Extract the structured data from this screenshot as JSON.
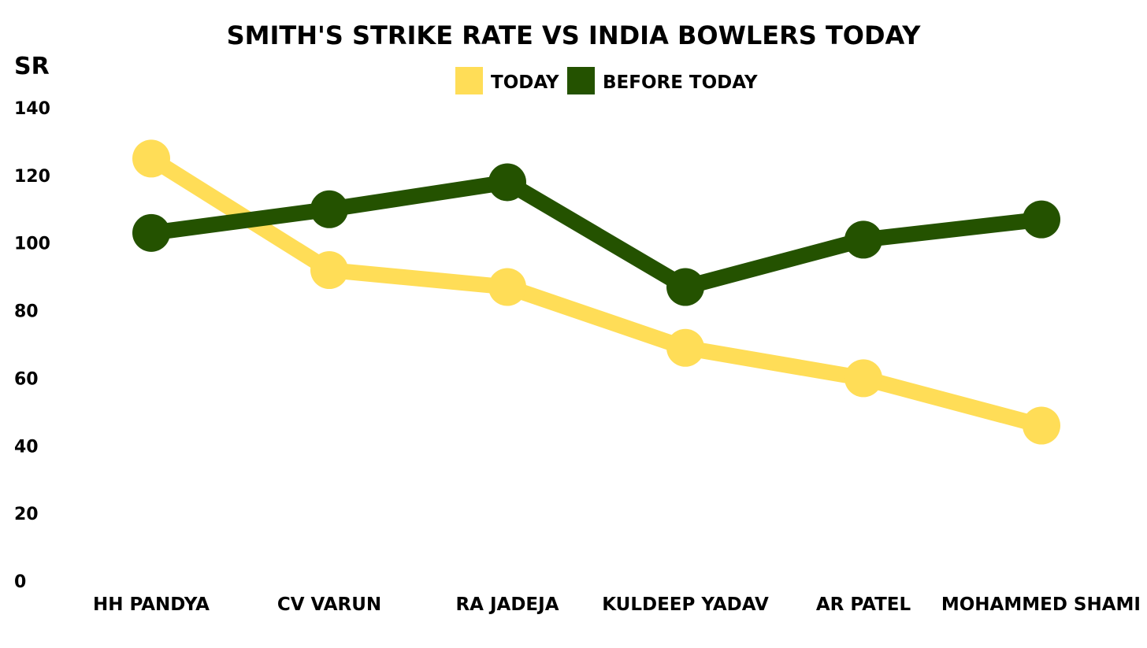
{
  "chart_data": {
    "type": "line",
    "title": "SMITH'S STRIKE RATE VS INDIA BOWLERS TODAY",
    "ylabel": "SR",
    "xlabel": "",
    "ylim": [
      0,
      140
    ],
    "yticks": [
      0,
      20,
      40,
      60,
      80,
      100,
      120,
      140
    ],
    "ytick_labels": [
      "0",
      "20",
      "40",
      "60",
      "80",
      "100",
      "120",
      "140"
    ],
    "grid": false,
    "legend_position": "top-center",
    "categories": [
      "HH PANDYA",
      "CV VARUN",
      "RA JADEJA",
      "KULDEEP YADAV",
      "AR PATEL",
      "MOHAMMED SHAMI"
    ],
    "series": [
      {
        "name": "TODAY",
        "color": "#FFDD57",
        "values": [
          125,
          92,
          87,
          69,
          60,
          46
        ]
      },
      {
        "name": "BEFORE TODAY",
        "color": "#245200",
        "values": [
          103,
          110,
          118,
          87,
          101,
          107
        ]
      }
    ]
  }
}
